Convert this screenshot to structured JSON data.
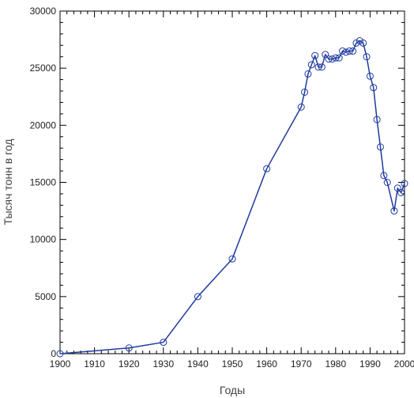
{
  "chart_data": {
    "type": "line",
    "xlabel": "Годы",
    "ylabel": "Тысяч тонн в год",
    "xlim": [
      1900,
      2000
    ],
    "ylim": [
      0,
      30000
    ],
    "x_ticks": [
      "1900",
      "1910",
      "1920",
      "1930",
      "1940",
      "1950",
      "1960",
      "1970",
      "1980",
      "1990",
      "2000"
    ],
    "y_ticks": [
      "0",
      "5000",
      "10000",
      "15000",
      "20000",
      "25000",
      "30000"
    ],
    "grid": false,
    "markers": "open-circle",
    "line_color": "#1f3a9e",
    "series": [
      {
        "x": [
          1900,
          1920,
          1930,
          1940,
          1950,
          1960,
          1970,
          1971,
          1972,
          1973,
          1974,
          1975,
          1976,
          1977,
          1978,
          1979,
          1980,
          1981,
          1982,
          1983,
          1984,
          1985,
          1986,
          1987,
          1988,
          1989,
          1990,
          1991,
          1992,
          1993,
          1994,
          1995,
          1997,
          1998,
          1999,
          2000
        ],
        "y": [
          0,
          500,
          1000,
          5000,
          8300,
          16200,
          21600,
          22900,
          24500,
          25300,
          26100,
          25100,
          25100,
          26200,
          25800,
          25800,
          25900,
          25900,
          26500,
          26400,
          26500,
          26500,
          27200,
          27400,
          27200,
          26000,
          24300,
          23300,
          20500,
          18100,
          15600,
          15000,
          12500,
          14500,
          14100,
          14900
        ]
      }
    ]
  }
}
